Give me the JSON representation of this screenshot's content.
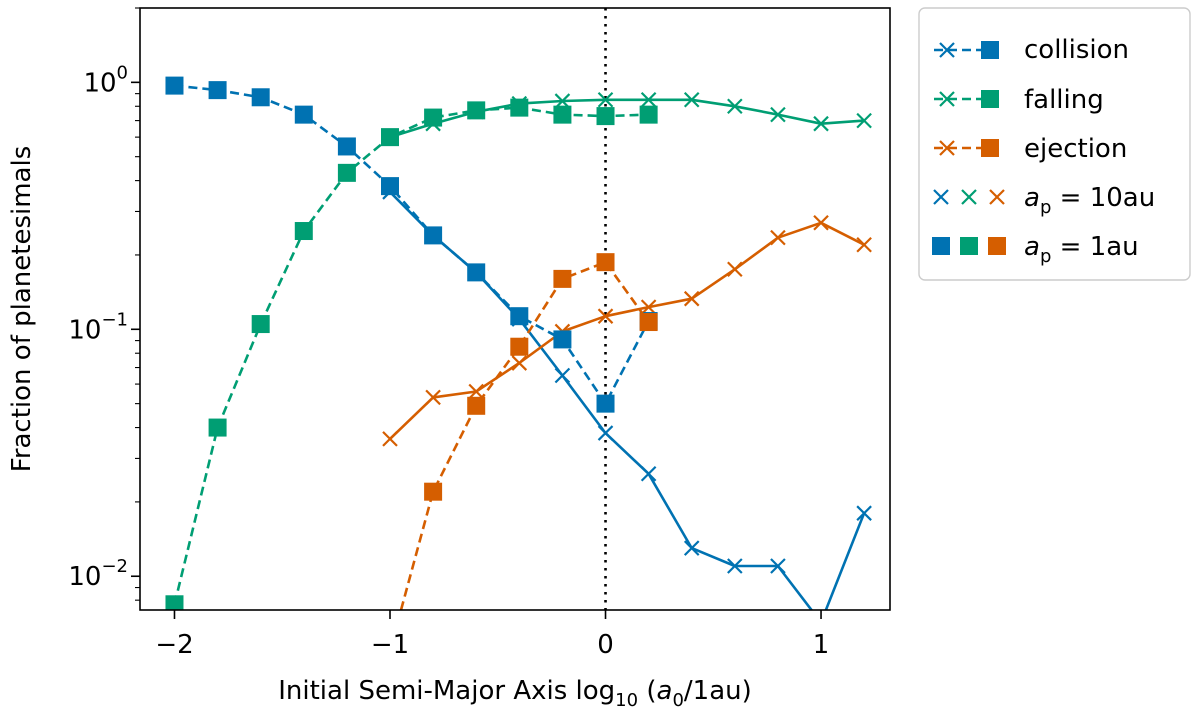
{
  "chart_data": {
    "type": "line",
    "xlabel": {
      "prefix": "Initial Semi-Major Axis log",
      "sub": "10",
      "mid": " (",
      "var": "a",
      "varsub": "0",
      "suffix": "/1au)"
    },
    "ylabel": "Fraction of planetesimals",
    "xlim": [
      -2.16,
      1.32
    ],
    "ylim": [
      0.0073,
      2.0
    ],
    "yscale": "log",
    "x_ticks": [
      -2,
      -1,
      0,
      1
    ],
    "x_tick_labels": [
      "−2",
      "−1",
      "0",
      "1"
    ],
    "y_ticks": [
      0.01,
      0.1,
      1
    ],
    "y_tick_labels": [
      {
        "base": "10",
        "exp": "−2"
      },
      {
        "base": "10",
        "exp": "−1"
      },
      {
        "base": "10",
        "exp": "0"
      }
    ],
    "vline_x": 0,
    "colors": {
      "collision": "#0072b2",
      "falling": "#009e73",
      "ejection": "#d55e00"
    },
    "series": [
      {
        "name": "collision",
        "key": "collision",
        "group": "10au",
        "x": [
          -1,
          -0.8,
          -0.6,
          -0.4,
          -0.2,
          0,
          0.2,
          0.4,
          0.6,
          0.8,
          1,
          1.2
        ],
        "y": [
          0.36,
          0.24,
          0.17,
          0.11,
          0.065,
          0.038,
          0.026,
          0.013,
          0.011,
          0.011,
          0.0065,
          0.018
        ]
      },
      {
        "name": "falling",
        "key": "falling",
        "group": "10au",
        "x": [
          -1,
          -0.8,
          -0.6,
          -0.4,
          -0.2,
          0,
          0.2,
          0.4,
          0.6,
          0.8,
          1,
          1.2
        ],
        "y": [
          0.6,
          0.68,
          0.76,
          0.82,
          0.84,
          0.85,
          0.85,
          0.85,
          0.8,
          0.74,
          0.68,
          0.7
        ]
      },
      {
        "name": "ejection",
        "key": "ejection",
        "group": "10au",
        "x": [
          -1,
          -0.8,
          -0.6,
          -0.4,
          -0.2,
          0,
          0.2,
          0.4,
          0.6,
          0.8,
          1,
          1.2
        ],
        "y": [
          0.036,
          0.053,
          0.056,
          0.073,
          0.098,
          0.113,
          0.123,
          0.133,
          0.175,
          0.235,
          0.27,
          0.22
        ]
      },
      {
        "name": "collision",
        "key": "collision",
        "group": "1au",
        "x": [
          -2,
          -1.8,
          -1.6,
          -1.4,
          -1.2,
          -1,
          -0.8,
          -0.6,
          -0.4,
          -0.2,
          0,
          0.2
        ],
        "y": [
          0.97,
          0.93,
          0.87,
          0.74,
          0.55,
          0.38,
          0.24,
          0.17,
          0.113,
          0.091,
          0.05,
          0.108
        ]
      },
      {
        "name": "falling",
        "key": "falling",
        "group": "1au",
        "x": [
          -2,
          -1.8,
          -1.6,
          -1.4,
          -1.2,
          -1,
          -0.8,
          -0.6,
          -0.4,
          -0.2,
          0,
          0.2
        ],
        "y": [
          0.0077,
          0.04,
          0.105,
          0.25,
          0.43,
          0.6,
          0.72,
          0.77,
          0.79,
          0.74,
          0.73,
          0.74
        ]
      },
      {
        "name": "ejection",
        "key": "ejection",
        "group": "1au",
        "x": [
          -1,
          -0.8,
          -0.6,
          -0.4,
          -0.2,
          0,
          0.2
        ],
        "y": [
          0.005,
          0.022,
          0.049,
          0.085,
          0.16,
          0.187,
          0.107
        ]
      }
    ],
    "legend": {
      "location": "upper right, outside plot",
      "entries": [
        {
          "label": "collision",
          "kind": "type",
          "key": "collision"
        },
        {
          "label": "falling",
          "kind": "type",
          "key": "falling"
        },
        {
          "label": "ejection",
          "kind": "type",
          "key": "ejection"
        },
        {
          "label": {
            "var": "a",
            "sub": "p",
            "rest": " = 10au"
          },
          "kind": "marker-x"
        },
        {
          "label": {
            "var": "a",
            "sub": "p",
            "rest": " = 1au"
          },
          "kind": "marker-square"
        }
      ]
    }
  }
}
